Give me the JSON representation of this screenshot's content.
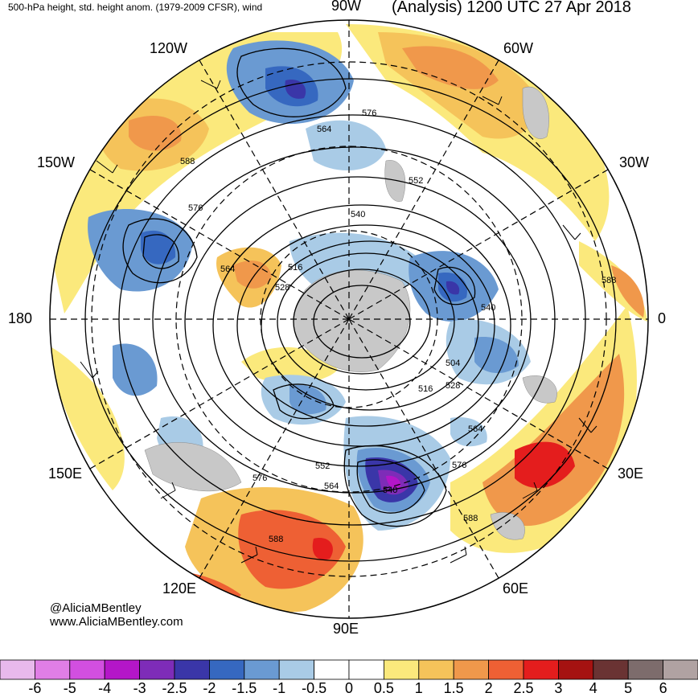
{
  "header": {
    "left": "500-hPa height, std. height anom. (1979-2009 CFSR), wind",
    "right": "(Analysis) 1200 UTC 27 Apr 2018"
  },
  "longitude_labels": [
    "90W",
    "60W",
    "30W",
    "0",
    "30E",
    "60E",
    "90E",
    "120E",
    "150E",
    "180",
    "150W",
    "120W"
  ],
  "contour_labels": [
    "576",
    "564",
    "552",
    "540",
    "588",
    "576",
    "564",
    "516",
    "528",
    "540",
    "504",
    "516",
    "528",
    "564",
    "576",
    "588",
    "552",
    "564",
    "540",
    "576",
    "588"
  ],
  "credit": {
    "line1": "@AliciaMBentley",
    "line2": "www.AliciaMBentley.com"
  },
  "colorbar": {
    "colors": [
      "#e8b9ec",
      "#e07ee6",
      "#d24fe0",
      "#b416c8",
      "#7e2cb8",
      "#3a36a8",
      "#3668c0",
      "#6a9ad2",
      "#a9cbe6",
      "#ffffff",
      "#ffffff",
      "#fbe97c",
      "#f5c35a",
      "#f0984b",
      "#ee6034",
      "#e41d1d",
      "#a51211",
      "#6a3333",
      "#7d6c6c",
      "#b0a2a2"
    ],
    "labels": [
      "-6",
      "-5",
      "-4",
      "-3",
      "-2.5",
      "-2",
      "-1.5",
      "-1",
      "-0.5",
      "0",
      "0.5",
      "1",
      "1.5",
      "2",
      "2.5",
      "3",
      "4",
      "5",
      "6"
    ]
  }
}
